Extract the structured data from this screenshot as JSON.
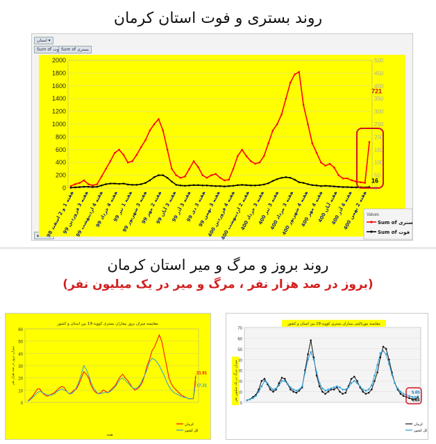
{
  "titles": {
    "main": "روند بستری و فوت استان کرمان",
    "second": "روند بروز و مرگ و میر استان کرمان",
    "second_sub": "(بروز در صد هزار نفر ، مرگ و میر در یک میلیون نفر)"
  },
  "toolbar": {
    "filter": "استان",
    "field1": "Sum of",
    "field1b": "فوت",
    "field2": "Sum of",
    "field2b": "بستری",
    "region": "منطقه"
  },
  "colors": {
    "yellow": "#ffff00",
    "red": "#ff0000",
    "black": "#000000",
    "blue": "#2e9bd6",
    "highlight": "#d01020"
  },
  "chart_data": [
    {
      "type": "line",
      "title": "",
      "ylim": [
        0,
        2000
      ],
      "y2lim": [
        0,
        500
      ],
      "yticks": [
        0,
        200,
        400,
        600,
        800,
        1000,
        1200,
        1400,
        1600,
        1800,
        2000
      ],
      "y2ticks": [
        0,
        50,
        100,
        150,
        200,
        250,
        300,
        350,
        400,
        450,
        500
      ],
      "legend_title": "Values",
      "legend_position": "right",
      "x_labels": [
        "هفته 1 و 2 اسفند 98",
        "هفته 3 فروردین 99",
        "هفته 4 اردیبهشت 99",
        "هفته 4 خرداد 99",
        "هفته 1 تیر 99",
        "هفته 3 شهریور 99",
        "هفته 2 مهر 99",
        "هفته 3 آبان 99",
        "هفته 3 آذر 99",
        "هفته 3 دی 99",
        "هفته 3 بهمن 99",
        "هفته 4 فروردین 400",
        "هفته 2 اردیبهشت 400",
        "هفته 3 خرداد 400",
        "هفته 3 تیر 400",
        "هفته 3 مرداد 400",
        "هفته 4 شهریور 400",
        "هفته 4 مهر 400",
        "هفته آبان 400",
        "هفته 4 آذر 400",
        "هفته 2 بهمن 400"
      ],
      "series": [
        {
          "name": "Sum of بستری",
          "color": "#ff0000",
          "last_label": "721",
          "values": [
            30,
            60,
            80,
            120,
            60,
            40,
            60,
            180,
            300,
            420,
            550,
            600,
            520,
            400,
            420,
            520,
            640,
            750,
            900,
            1000,
            1080,
            900,
            600,
            300,
            200,
            160,
            180,
            300,
            420,
            330,
            200,
            160,
            200,
            220,
            160,
            120,
            130,
            300,
            500,
            600,
            500,
            420,
            380,
            400,
            500,
            700,
            900,
            1000,
            1150,
            1400,
            1650,
            1780,
            1820,
            1300,
            1000,
            700,
            550,
            400,
            350,
            380,
            320,
            200,
            150,
            150,
            120,
            100,
            90,
            80,
            721
          ]
        },
        {
          "name": "Sum of فوت",
          "color": "#000000",
          "last_label": "16",
          "values": [
            5,
            10,
            15,
            20,
            20,
            15,
            20,
            40,
            60,
            70,
            70,
            65,
            70,
            55,
            50,
            50,
            60,
            80,
            120,
            170,
            200,
            200,
            160,
            100,
            50,
            40,
            35,
            40,
            45,
            45,
            40,
            40,
            35,
            30,
            30,
            25,
            30,
            35,
            45,
            50,
            45,
            40,
            40,
            45,
            55,
            75,
            110,
            140,
            160,
            170,
            160,
            130,
            90,
            80,
            60,
            45,
            40,
            30,
            35,
            30,
            25,
            20,
            15,
            15,
            12,
            10,
            12,
            8,
            16
          ]
        }
      ]
    },
    {
      "type": "line",
      "title": "مقایسه میزان بروز بیماران بستری کووید-19 بین استان و کشور",
      "ylabel": "میزان بروز در صد هزار نفر",
      "xlabel": "هفته",
      "ylim": [
        0,
        60
      ],
      "yticks": [
        0,
        10,
        20,
        30,
        40,
        50,
        60
      ],
      "series": [
        {
          "name": "کرمان",
          "color": "#ff0000",
          "last_label": "21.91",
          "values": [
            1,
            3,
            5,
            8,
            11,
            11,
            8,
            6,
            5,
            6,
            7,
            8,
            10,
            12,
            13,
            12,
            9,
            7,
            8,
            10,
            11,
            15,
            20,
            25,
            23,
            20,
            14,
            10,
            8,
            7,
            8,
            10,
            9,
            8,
            10,
            12,
            14,
            18,
            21,
            23,
            20,
            18,
            15,
            12,
            10,
            11,
            13,
            16,
            22,
            30,
            35,
            42,
            45,
            50,
            55,
            50,
            40,
            30,
            20,
            15,
            12,
            10,
            8,
            6,
            5,
            4,
            3,
            3,
            3,
            21.91
          ]
        },
        {
          "name": "کل کشور",
          "color": "#2e9bd6",
          "last_label": "17.31",
          "values": [
            1,
            2,
            4,
            6,
            8,
            9,
            8,
            7,
            6,
            6,
            6,
            7,
            9,
            10,
            11,
            10,
            9,
            7,
            7,
            9,
            12,
            17,
            23,
            30,
            27,
            22,
            16,
            12,
            9,
            7,
            7,
            8,
            8,
            8,
            9,
            11,
            13,
            16,
            19,
            20,
            18,
            16,
            14,
            12,
            11,
            12,
            14,
            18,
            22,
            27,
            33,
            36,
            35,
            33,
            30,
            26,
            22,
            17,
            13,
            10,
            8,
            7,
            6,
            5,
            4,
            4,
            3,
            3,
            3,
            17.31
          ]
        }
      ]
    },
    {
      "type": "line",
      "title": "مقایسه مورتالیتی بیماران بستری کووید-19 بین استان و کشور",
      "ylabel": "میزان مرگ در یک میلیون نفر",
      "ylim": [
        0,
        70
      ],
      "yticks": [
        0,
        10,
        20,
        30,
        40,
        50,
        60,
        70
      ],
      "series": [
        {
          "name": "کرمان",
          "color": "#111111",
          "last_label": "4.86",
          "values": [
            2,
            3,
            5,
            7,
            12,
            20,
            22,
            17,
            12,
            10,
            12,
            18,
            23,
            22,
            17,
            12,
            10,
            9,
            11,
            14,
            30,
            45,
            58,
            42,
            25,
            15,
            10,
            8,
            10,
            12,
            12,
            14,
            10,
            8,
            9,
            15,
            22,
            24,
            20,
            14,
            10,
            8,
            9,
            12,
            20,
            28,
            42,
            52,
            50,
            40,
            28,
            18,
            12,
            8,
            6,
            5,
            4,
            3,
            3,
            4.86
          ]
        },
        {
          "name": "کل کشور",
          "color": "#2e9bd6",
          "last_label": "5.65",
          "values": [
            2,
            3,
            4,
            6,
            10,
            15,
            20,
            18,
            14,
            12,
            13,
            16,
            20,
            20,
            17,
            14,
            12,
            11,
            12,
            15,
            28,
            40,
            47,
            40,
            28,
            18,
            13,
            11,
            12,
            13,
            14,
            15,
            14,
            12,
            12,
            14,
            18,
            20,
            18,
            15,
            12,
            11,
            12,
            16,
            25,
            35,
            46,
            48,
            45,
            36,
            26,
            18,
            13,
            10,
            8,
            7,
            6,
            5,
            5,
            5.65
          ]
        }
      ]
    }
  ]
}
